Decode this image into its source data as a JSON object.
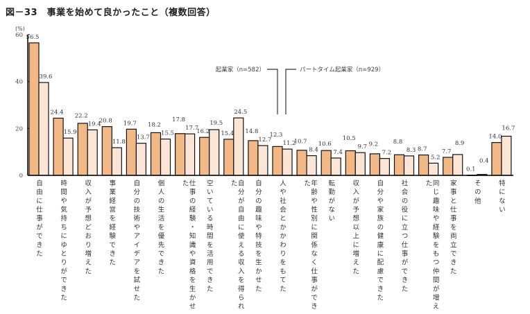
{
  "title": "図－33　事業を始めて良かったこと（複数回答）",
  "chart_data": {
    "type": "bar",
    "title": "図－33　事業を始めて良かったこと（複数回答）",
    "ylabel": "(%)",
    "ylim": [
      0,
      60
    ],
    "yticks": [
      "0",
      "20",
      "40",
      "60"
    ],
    "grid": false,
    "categories": [
      "自由に仕事ができた",
      "時間や気持ちにゆとりができた",
      "収入が予想どおり増えた",
      "事業経営を経験できた",
      "自分の技術やアイデアを試せた",
      "個人の生活を優先できた",
      "仕事の経験・知識や資格を生かせた",
      "空いている時間を活用できた",
      "自分が自由に使える収入を得られた",
      "自分の趣味や特技を生かせた",
      "人や社会とかかわりをもてた",
      "年齢や性別に関係なく仕事ができた",
      "転勤がない",
      "収入が予想以上に増えた",
      "自分や家族の健康に配慮できた",
      "社会の役に立つ仕事ができた",
      "同じ趣味や経験をもつ仲間が増えた",
      "家事と仕事を両立できた",
      "その他",
      "特にない"
    ],
    "series": [
      {
        "name": "起業家（n=582）",
        "color": "#f2b886",
        "values": [
          56.5,
          24.4,
          22.2,
          20.8,
          19.7,
          18.2,
          17.8,
          16.2,
          15.4,
          14.8,
          12.3,
          10.7,
          10.6,
          10.5,
          9.2,
          8.8,
          8.7,
          7.7,
          0.1,
          14.0
        ]
      },
      {
        "name": "パートタイム起業家（n=929）",
        "color": "#fbe6d6",
        "values": [
          39.6,
          15.9,
          19.4,
          11.8,
          13.7,
          15.5,
          17.7,
          19.5,
          24.5,
          12.7,
          11.2,
          8.4,
          7.4,
          9.7,
          7.2,
          8.3,
          5.2,
          8.9,
          0.4,
          16.7
        ]
      }
    ],
    "legend_placement": "top-center"
  }
}
